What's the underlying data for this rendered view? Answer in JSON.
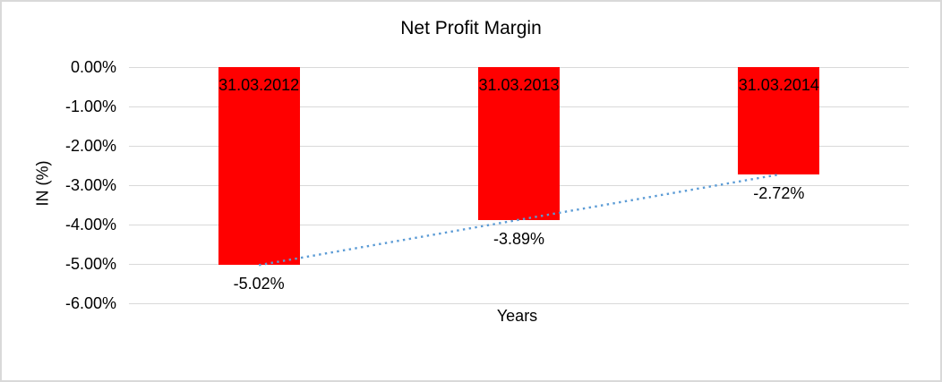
{
  "window": {
    "background": "#ffffff",
    "border_color": "#d9d9d9"
  },
  "chart_data": {
    "type": "bar",
    "title": "Net Profit Margin",
    "xlabel": "Years",
    "ylabel": "IN (%)",
    "categories": [
      "31.03.2012",
      "31.03.2013",
      "31.03.2014"
    ],
    "series": [
      {
        "name": "Net Profit Margin",
        "color": "#ff0000",
        "values": [
          -5.02,
          -3.89,
          -2.72
        ]
      }
    ],
    "data_labels": [
      "-5.02%",
      "-3.89%",
      "-2.72%"
    ],
    "category_label_position": "inside-top-of-bar",
    "data_label_position": "below-bar",
    "y_ticks": [
      {
        "label": "0.00%",
        "value": 0
      },
      {
        "label": "-1.00%",
        "value": -1
      },
      {
        "label": "-2.00%",
        "value": -2
      },
      {
        "label": "-3.00%",
        "value": -3
      },
      {
        "label": "-4.00%",
        "value": -4
      },
      {
        "label": "-5.00%",
        "value": -5
      },
      {
        "label": "-6.00%",
        "value": -6
      }
    ],
    "ylim": [
      -6,
      0
    ],
    "grid": true,
    "legend": false,
    "gridline_color": "#d9d9d9",
    "text_color": "#000000",
    "bar_color": "#ff0000",
    "trendline": {
      "type": "linear",
      "style": "dotted",
      "color": "#5b9bd5",
      "start_value": -5.03,
      "end_value": -2.73
    }
  }
}
